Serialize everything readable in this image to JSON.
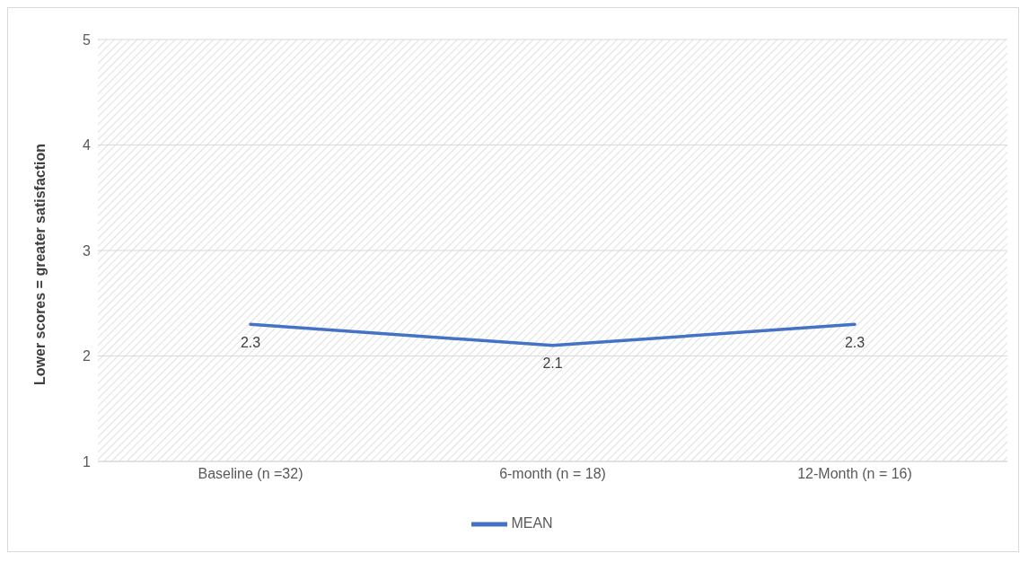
{
  "chart_data": {
    "type": "line",
    "ylabel": "Lower scores = greater satisfaction",
    "categories": [
      "Baseline (n =32)",
      "6-month (n = 18)",
      "12-Month (n = 16)"
    ],
    "series": [
      {
        "name": "MEAN",
        "color": "#4472c4",
        "values": [
          2.3,
          2.1,
          2.3
        ]
      }
    ],
    "ylim": [
      1,
      5
    ],
    "yticks": [
      1,
      2,
      3,
      4,
      5
    ],
    "grid": "y",
    "legend": "bottom",
    "data_labels": true,
    "marker": "none"
  }
}
